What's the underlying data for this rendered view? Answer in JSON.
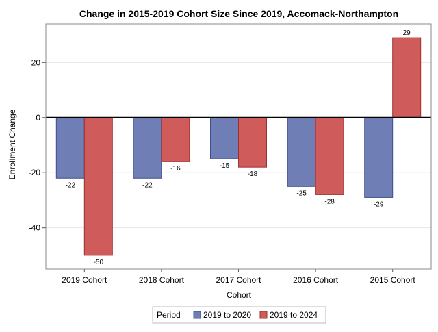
{
  "chart_data": {
    "type": "bar",
    "title": "Change in 2015-2019 Cohort Size Since 2019, Accomack-Northampton",
    "xlabel": "Cohort",
    "ylabel": "Enrollment Change",
    "categories": [
      "2019 Cohort",
      "2018 Cohort",
      "2017 Cohort",
      "2016 Cohort",
      "2015 Cohort"
    ],
    "series": [
      {
        "name": "2019 to 2020",
        "values": [
          -22,
          -22,
          -15,
          -25,
          -29
        ],
        "color": "#6f7eb5"
      },
      {
        "name": "2019 to 2024",
        "values": [
          -50,
          -16,
          -18,
          -28,
          29
        ],
        "color": "#d05b5b"
      }
    ],
    "ylim": [
      -55,
      34
    ],
    "yticks": [
      -40,
      -20,
      0,
      20
    ],
    "grid": true,
    "legend": {
      "title": "Period",
      "placement": "bottom"
    }
  }
}
